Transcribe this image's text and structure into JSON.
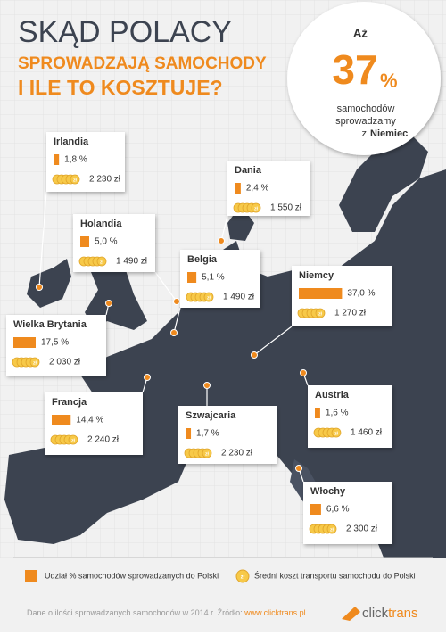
{
  "header": {
    "line1": "SKĄD POLACY",
    "line2": "SPROWADZAJĄ SAMOCHODY",
    "line3": "I ILE TO KOSZTUJE?"
  },
  "highlight": {
    "prefix": "Aż",
    "number": "37",
    "unit": "%",
    "line1": "samochodów",
    "line2": "sprowadzamy",
    "line3_pre": "z",
    "line3_bold": "Niemiec"
  },
  "coin_symbol": "zł",
  "countries": [
    {
      "name": "Irlandia",
      "share": 1.8,
      "share_label": "1,8 %",
      "cost": "2 230 zł"
    },
    {
      "name": "Dania",
      "share": 2.4,
      "share_label": "2,4 %",
      "cost": "1 550 zł"
    },
    {
      "name": "Holandia",
      "share": 5.0,
      "share_label": "5,0 %",
      "cost": "1 490 zł"
    },
    {
      "name": "Belgia",
      "share": 5.1,
      "share_label": "5,1 %",
      "cost": "1 490 zł"
    },
    {
      "name": "Niemcy",
      "share": 37.0,
      "share_label": "37,0 %",
      "cost": "1 270 zł"
    },
    {
      "name": "Wielka Brytania",
      "share": 17.5,
      "share_label": "17,5 %",
      "cost": "2 030 zł"
    },
    {
      "name": "Francja",
      "share": 14.4,
      "share_label": "14,4 %",
      "cost": "2 240 zł"
    },
    {
      "name": "Szwajcaria",
      "share": 1.7,
      "share_label": "1,7 %",
      "cost": "2 230 zł"
    },
    {
      "name": "Austria",
      "share": 1.6,
      "share_label": "1,6 %",
      "cost": "1 460 zł"
    },
    {
      "name": "Włochy",
      "share": 6.6,
      "share_label": "6,6 %",
      "cost": "2 300 zł"
    }
  ],
  "legend": {
    "share": "Udział % samochodów sprowadzanych do Polski",
    "cost": "Średni koszt transportu samochodu do Polski"
  },
  "footer": {
    "text": "Dane o ilości sprowadzanych samochodów w 2014 r. Źródło:",
    "link": "www.clicktrans.pl",
    "logo_a": "click",
    "logo_b": "trans"
  }
}
